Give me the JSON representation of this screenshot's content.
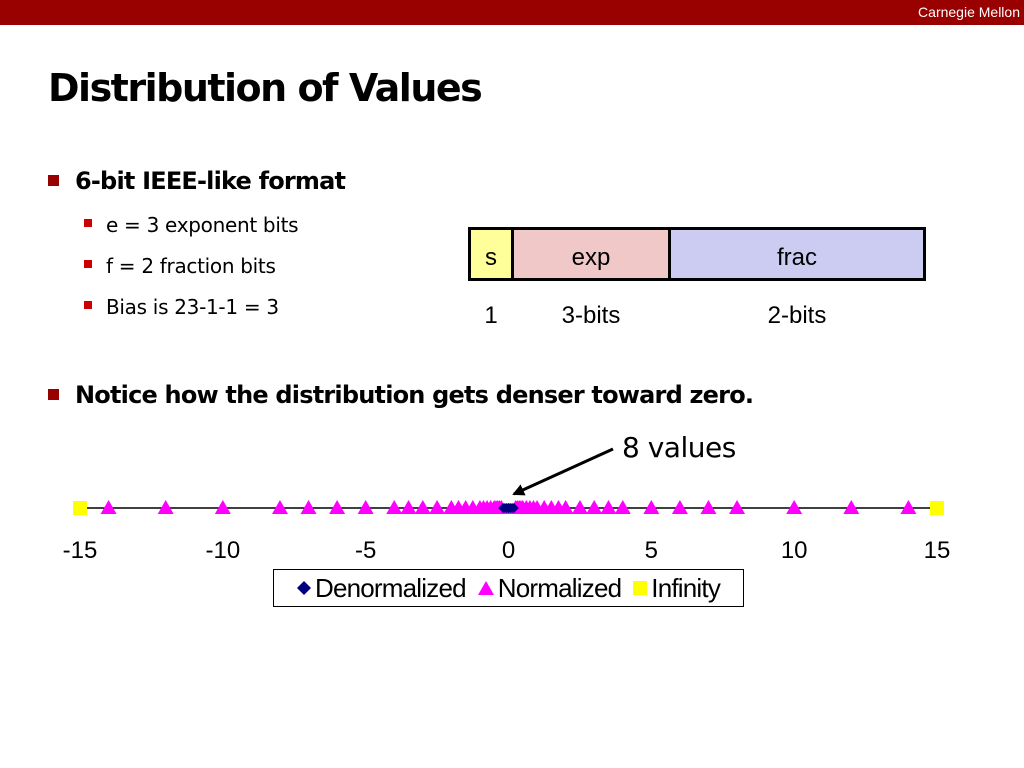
{
  "header": {
    "brand": "Carnegie Mellon"
  },
  "slide": {
    "title": "Distribution of Values",
    "bullets": [
      {
        "text": "6-bit IEEE-like format",
        "sub": [
          "e = 3 exponent bits",
          "f = 2 fraction bits",
          "Bias is 23-1-1 = 3"
        ]
      },
      {
        "text": "Notice how the distribution gets denser toward zero."
      }
    ]
  },
  "format_diagram": {
    "fields": [
      {
        "label": "s",
        "bits": "1",
        "color": "#ffff99"
      },
      {
        "label": "exp",
        "bits": "3-bits",
        "color": "#f0c8c8"
      },
      {
        "label": "frac",
        "bits": "2-bits",
        "color": "#ccccf2"
      }
    ]
  },
  "annotation": {
    "text": "8 values",
    "points_to_x": 0
  },
  "chart_data": {
    "type": "scatter",
    "xlim": [
      -15,
      15
    ],
    "ticks": [
      -15,
      -10,
      -5,
      0,
      5,
      10,
      15
    ],
    "tick_labels": [
      "-15",
      "-10",
      "-5",
      "0",
      "5",
      "10",
      "15"
    ],
    "legend_placement": "bottom-center",
    "series": [
      {
        "name": "Denormalized",
        "marker": "diamond",
        "color": "#000080",
        "x": [
          -0.1875,
          -0.125,
          -0.0625,
          0,
          0,
          0.0625,
          0.125,
          0.1875
        ]
      },
      {
        "name": "Normalized",
        "marker": "triangle",
        "color": "#ff00ff",
        "x": [
          -14,
          -12,
          -10,
          -8,
          -7,
          -6,
          -5,
          -4,
          -3.5,
          -3,
          -2.5,
          -2,
          -1.75,
          -1.5,
          -1.25,
          -1,
          -0.875,
          -0.75,
          -0.625,
          -0.5,
          -0.4375,
          -0.375,
          -0.3125,
          -0.25,
          0.25,
          0.3125,
          0.375,
          0.4375,
          0.5,
          0.625,
          0.75,
          0.875,
          1,
          1.25,
          1.5,
          1.75,
          2,
          2.5,
          3,
          3.5,
          4,
          5,
          6,
          7,
          8,
          10,
          12,
          14
        ]
      },
      {
        "name": "Infinity",
        "marker": "square",
        "color": "#ffff00",
        "x": [
          -15,
          15
        ]
      }
    ]
  }
}
